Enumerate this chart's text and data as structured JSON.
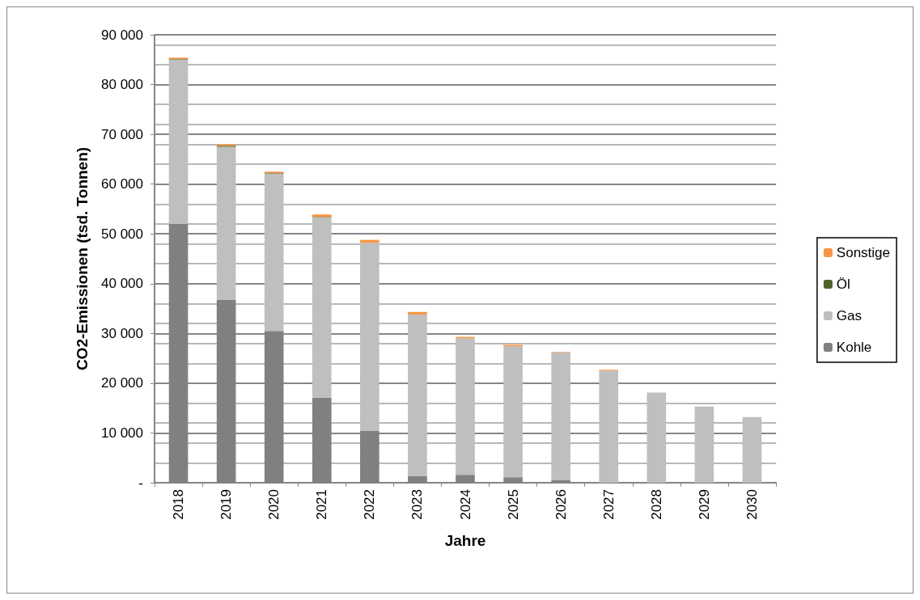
{
  "chart_data": {
    "type": "bar",
    "stacked": true,
    "xlabel": "Jahre",
    "ylabel": "CO2-Emissionen (tsd. Tonnen)",
    "categories": [
      "2018",
      "2019",
      "2020",
      "2021",
      "2022",
      "2023",
      "2024",
      "2025",
      "2026",
      "2027",
      "2028",
      "2029",
      "2030"
    ],
    "series": [
      {
        "name": "Kohle",
        "color": "#808080",
        "values": [
          52000,
          36700,
          30500,
          17100,
          10400,
          1400,
          1600,
          1100,
          500,
          0,
          0,
          0,
          0
        ]
      },
      {
        "name": "Gas",
        "color": "#bfbfbf",
        "values": [
          33000,
          30800,
          31600,
          36200,
          37800,
          32400,
          27400,
          26300,
          25700,
          22500,
          18100,
          15300,
          13200
        ]
      },
      {
        "name": "Öl",
        "color": "#4f6228",
        "values": [
          100,
          200,
          100,
          100,
          null,
          0,
          0,
          0,
          0,
          0,
          0,
          0,
          0
        ]
      },
      {
        "name": "Sonstige",
        "color": "#f79646",
        "values": [
          300,
          300,
          300,
          500,
          600,
          500,
          300,
          300,
          100,
          200,
          0,
          0,
          0
        ]
      }
    ],
    "ylim": [
      0,
      90000
    ],
    "yticks": [
      {
        "value": 0,
        "label": "-"
      },
      {
        "value": 10000,
        "label": "10 000"
      },
      {
        "value": 20000,
        "label": "20 000"
      },
      {
        "value": 30000,
        "label": "30 000"
      },
      {
        "value": 40000,
        "label": "40 000"
      },
      {
        "value": 50000,
        "label": "50 000"
      },
      {
        "value": 60000,
        "label": "60 000"
      },
      {
        "value": 70000,
        "label": "70 000"
      },
      {
        "value": 80000,
        "label": "80 000"
      },
      {
        "value": 90000,
        "label": "90 000"
      }
    ],
    "grid": "y",
    "legend": "right"
  }
}
